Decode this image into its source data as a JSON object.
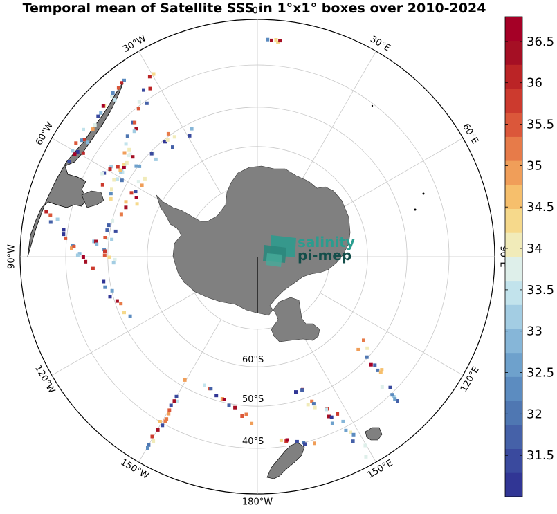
{
  "title": "Temporal mean of Satellite SSS in 1°x1° boxes over 2010-2024",
  "logo": {
    "line1": "salinity",
    "line2": "pi-mep"
  },
  "meridian_labels": [
    {
      "lon": 0,
      "text": "0°"
    },
    {
      "lon": 30,
      "text": "30°E"
    },
    {
      "lon": 60,
      "text": "60°E"
    },
    {
      "lon": 90,
      "text": "90°E"
    },
    {
      "lon": 120,
      "text": "120°E"
    },
    {
      "lon": 150,
      "text": "150°E"
    },
    {
      "lon": 180,
      "text": "180°W"
    },
    {
      "lon": -150,
      "text": "150°W"
    },
    {
      "lon": -120,
      "text": "120°W"
    },
    {
      "lon": -90,
      "text": "90°W"
    },
    {
      "lon": -60,
      "text": "60°W"
    },
    {
      "lon": -30,
      "text": "30°W"
    }
  ],
  "parallel_labels": [
    {
      "lat": -60,
      "text": "60°S"
    },
    {
      "lat": -50,
      "text": "50°S"
    },
    {
      "lat": -40,
      "text": "40°S"
    }
  ],
  "colorbar": {
    "min": 31.0,
    "max": 36.8,
    "ticks": [
      "31.5",
      "32",
      "32.5",
      "33",
      "33.5",
      "34",
      "34.5",
      "35",
      "35.5",
      "36",
      "36.5"
    ],
    "colors": [
      "#313695",
      "#3a4a9e",
      "#4561a8",
      "#4f77b2",
      "#5c8cc0",
      "#6ea1cc",
      "#86b6d8",
      "#a3cde3",
      "#c2e3ec",
      "#deefea",
      "#f1ebb9",
      "#f6d98b",
      "#f6bf6c",
      "#f09e59",
      "#e77b49",
      "#db573a",
      "#cc3a2e",
      "#bb2426",
      "#a50f24",
      "#a50026"
    ]
  },
  "map_data": {
    "projection": "south-polar-stereographic",
    "outer_latitude": -30,
    "parallels": [
      -40,
      -50,
      -60,
      -70
    ],
    "meridian_step": 30,
    "land_color": "#808080"
  }
}
